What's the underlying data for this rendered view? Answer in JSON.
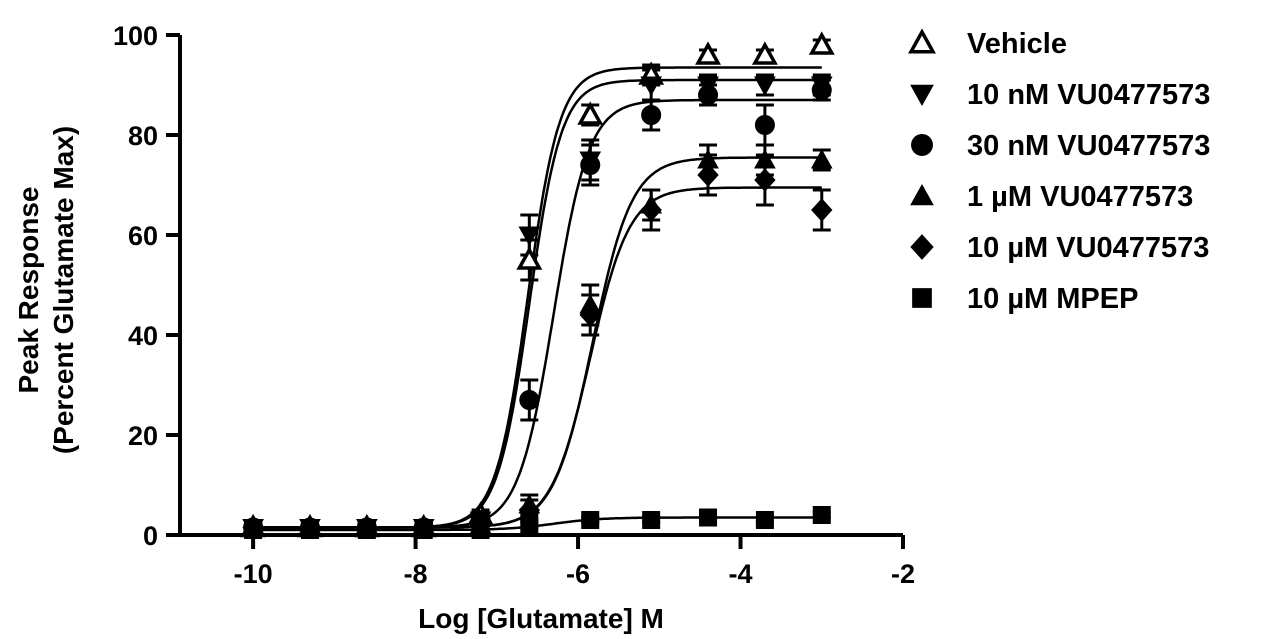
{
  "chart_data": {
    "type": "scatter",
    "title": "",
    "xlabel": "Log [Glutamate] M",
    "ylabel_line1": "Peak Response",
    "ylabel_line2": "(Percent Glutamate Max)",
    "xlim": [
      -10.9,
      -2
    ],
    "ylim": [
      0,
      100
    ],
    "xticks": [
      -10,
      -8,
      -6,
      -4,
      -2
    ],
    "yticks": [
      0,
      20,
      40,
      60,
      80,
      100
    ],
    "x": [
      -10,
      -9.3,
      -8.6,
      -7.9,
      -7.2,
      -6.6,
      -5.85,
      -5.1,
      -4.4,
      -3.7,
      -3
    ],
    "legend_position": "right",
    "series": [
      {
        "name": "Vehicle",
        "marker": "triangle-up-open",
        "values": [
          1.5,
          1.5,
          1.5,
          1.5,
          4,
          55,
          84,
          92,
          96,
          96,
          98
        ],
        "errors": [
          1,
          1,
          1,
          1,
          1,
          4,
          2,
          2,
          1,
          1,
          1
        ],
        "fit": {
          "bottom": 1.5,
          "top": 93.5,
          "logEC50": -6.62,
          "hill": 2.2
        }
      },
      {
        "name": "10 nM VU0477573",
        "marker": "triangle-down",
        "values": [
          1.5,
          1.5,
          1.5,
          1.5,
          3,
          60,
          75,
          90,
          90,
          90,
          90
        ],
        "errors": [
          1,
          1,
          1,
          1,
          1,
          4,
          4,
          3,
          2,
          2,
          2
        ],
        "fit": {
          "bottom": 1.5,
          "top": 91,
          "logEC50": -6.6,
          "hill": 2.2
        }
      },
      {
        "name": "30 nM VU0477573",
        "marker": "circle",
        "values": [
          1.5,
          1.5,
          1.5,
          1.5,
          3,
          27,
          74,
          84,
          88,
          82,
          89
        ],
        "errors": [
          1,
          1,
          1,
          1,
          1,
          4,
          4,
          3,
          2,
          4,
          2
        ],
        "fit": {
          "bottom": 1.5,
          "top": 87,
          "logEC50": -6.3,
          "hill": 2.0
        }
      },
      {
        "name": "1 µM VU0477573",
        "marker": "triangle-up",
        "values": [
          1.5,
          1.5,
          1.5,
          1.5,
          2,
          6,
          46,
          66,
          75,
          75,
          75
        ],
        "errors": [
          1,
          1,
          1,
          1,
          1,
          2,
          4,
          3,
          3,
          3,
          2
        ],
        "fit": {
          "bottom": 1.5,
          "top": 75.5,
          "logEC50": -5.82,
          "hill": 1.8
        }
      },
      {
        "name": "10 µM VU0477573",
        "marker": "diamond",
        "values": [
          1.5,
          1.5,
          1.5,
          1.5,
          2,
          5,
          44,
          65,
          72,
          71,
          65
        ],
        "errors": [
          1,
          1,
          1,
          1,
          1,
          2,
          4,
          4,
          4,
          5,
          4
        ],
        "fit": {
          "bottom": 1.5,
          "top": 69.5,
          "logEC50": -5.85,
          "hill": 1.8
        }
      },
      {
        "name": "10 µM MPEP",
        "marker": "square",
        "values": [
          1,
          1,
          1,
          1,
          1,
          2,
          3,
          3,
          3.5,
          3,
          4
        ],
        "errors": [
          0.5,
          0.5,
          0.5,
          0.5,
          0.5,
          0.5,
          0.5,
          0.5,
          0.5,
          0.5,
          0.5
        ],
        "fit": {
          "bottom": 1,
          "top": 3.5,
          "logEC50": -6.3,
          "hill": 1.5
        }
      }
    ]
  }
}
